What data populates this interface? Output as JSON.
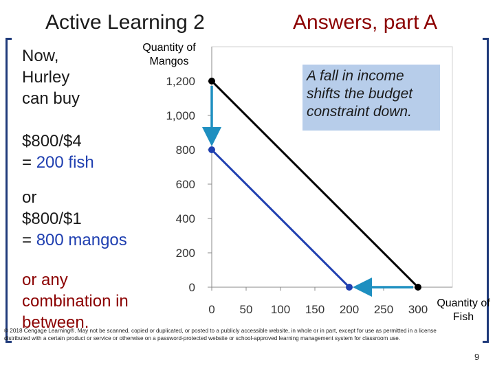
{
  "title": {
    "left": "Active Learning 2",
    "right": "Answers, part A"
  },
  "body": {
    "line1": "Now,",
    "line2": "Hurley",
    "line3": "can buy",
    "line4": "$800/$4",
    "line5_prefix": "= ",
    "line5_value": "200 fish",
    "line6": "or",
    "line7": "$800/$1",
    "line8_prefix": "= ",
    "line8_value": "800 mangos",
    "line9": "or any",
    "line10": "combination in",
    "line11": "between."
  },
  "callout": {
    "text": "A fall in income shifts the budget constraint down."
  },
  "footer": {
    "text": "© 2018 Cengage Learning®. May not be scanned, copied or duplicated, or posted to a publicly accessible website, in whole or in part, except for use as permitted in a license distributed with a certain product or service or otherwise on a password-protected website or school-approved learning management system for classroom use.",
    "page": "9"
  },
  "colors": {
    "old_line": "#000000",
    "new_line": "#1f3fb0",
    "arrow": "#1e8fc0",
    "title_right": "#8b0000",
    "callout_bg": "#b7cdea"
  },
  "chart_data": {
    "type": "line",
    "ylabel": "Quantity of Mangos",
    "xlabel": "Quantity of Fish",
    "xlim": [
      0,
      300
    ],
    "ylim": [
      0,
      1200
    ],
    "x_ticks": [
      0,
      50,
      100,
      150,
      200,
      250,
      300
    ],
    "y_ticks": [
      0,
      200,
      400,
      600,
      800,
      1000,
      1200
    ],
    "x_tick_labels": [
      "0",
      "50",
      "100",
      "150",
      "200",
      "250",
      "300"
    ],
    "y_tick_labels": [
      "0",
      "200",
      "400",
      "600",
      "800",
      "1,000",
      "1,200"
    ],
    "grid": false,
    "series": [
      {
        "color": "#000000",
        "points": [
          [
            0,
            1200
          ],
          [
            300,
            0
          ]
        ]
      },
      {
        "color": "#1f3fb0",
        "points": [
          [
            0,
            800
          ],
          [
            200,
            0
          ]
        ]
      }
    ],
    "arrows": [
      {
        "from": [
          0,
          1200
        ],
        "to": [
          0,
          800
        ]
      },
      {
        "from": [
          300,
          0
        ],
        "to": [
          200,
          0
        ]
      }
    ]
  }
}
